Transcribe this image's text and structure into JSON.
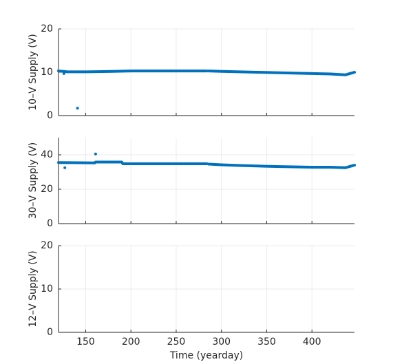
{
  "chart_data": [
    {
      "type": "line",
      "ylabel": "10–V Supply (V)",
      "xlim": [
        120,
        447
      ],
      "ylim": [
        0,
        20
      ],
      "yticks": [
        0,
        10,
        20
      ],
      "grid": true,
      "series": [
        {
          "color": "#0072bd",
          "x": [
            120,
            130,
            150,
            180,
            200,
            250,
            284,
            285,
            286,
            300,
            320,
            340,
            360,
            380,
            400,
            420,
            437,
            447
          ],
          "values": [
            10.3,
            10.1,
            10.1,
            10.2,
            10.3,
            10.3,
            10.3,
            null,
            10.3,
            10.2,
            10.1,
            10.0,
            9.9,
            9.8,
            9.7,
            9.6,
            9.4,
            10.0
          ]
        },
        {
          "color": "#0072bd",
          "markers": true,
          "x": [
            126,
            141
          ],
          "values": [
            9.7,
            1.7
          ]
        }
      ]
    },
    {
      "type": "line",
      "ylabel": "30–V Supply (V)",
      "xlim": [
        120,
        447
      ],
      "ylim": [
        0,
        50
      ],
      "yticks": [
        0,
        20,
        40
      ],
      "grid": true,
      "series": [
        {
          "color": "#0072bd",
          "x": [
            120,
            160,
            161,
            190,
            191,
            284,
            285,
            286,
            300,
            320,
            340,
            360,
            380,
            400,
            420,
            437,
            447
          ],
          "values": [
            35.5,
            35.3,
            35.8,
            35.8,
            34.8,
            34.8,
            null,
            34.6,
            34.2,
            33.8,
            33.5,
            33.2,
            33.0,
            32.8,
            32.8,
            32.5,
            34.0
          ]
        },
        {
          "color": "#0072bd",
          "markers": true,
          "x": [
            127,
            161
          ],
          "values": [
            32.5,
            40.5
          ]
        }
      ]
    },
    {
      "type": "line",
      "ylabel": "12–V Supply (V)",
      "xlabel": "Time (yearday)",
      "xlim": [
        120,
        447
      ],
      "ylim": [
        0,
        20
      ],
      "yticks": [
        0,
        10,
        20
      ],
      "xticks": [
        150,
        200,
        250,
        300,
        350,
        400
      ],
      "grid": true,
      "series": []
    }
  ]
}
